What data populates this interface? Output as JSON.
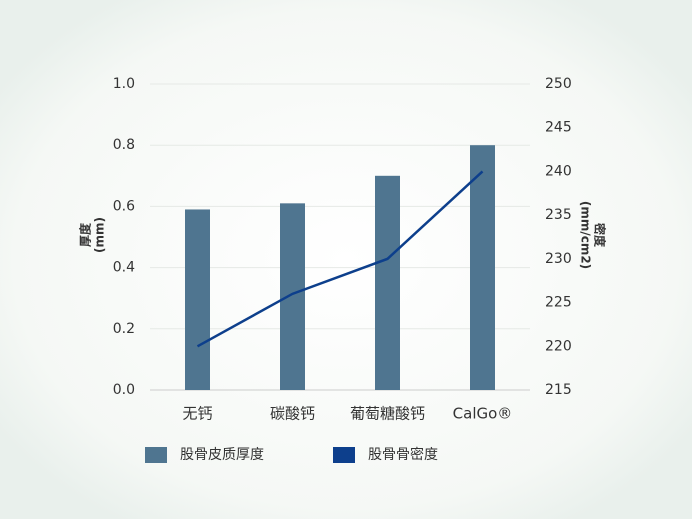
{
  "chart_data": {
    "type": "bar",
    "categories": [
      "无钙",
      "碳酸钙",
      "葡萄糖酸钙",
      "CalGo®"
    ],
    "series": [
      {
        "name": "股骨皮质厚度",
        "type": "bar",
        "color": "#4f7590",
        "values": [
          0.59,
          0.61,
          0.7,
          0.8
        ]
      },
      {
        "name": "股骨骨密度",
        "type": "line",
        "axis": "y2",
        "color": "#0d3f8c",
        "values": [
          220,
          226,
          230,
          240
        ]
      }
    ],
    "ylabel": [
      "厚度",
      "(mm)"
    ],
    "y2label": [
      "密度",
      "(mm/cm2)"
    ],
    "ylim": [
      0,
      1.0
    ],
    "yticks": [
      {
        "value": 0,
        "label": "0.0"
      },
      0.2,
      0.4,
      0.6,
      0.8,
      {
        "value": 1.0,
        "label": "1.0"
      }
    ],
    "y2lim": [
      215,
      250
    ],
    "y2ticks": [
      215,
      220,
      225,
      230,
      235,
      240,
      245,
      250
    ],
    "grid": true
  }
}
